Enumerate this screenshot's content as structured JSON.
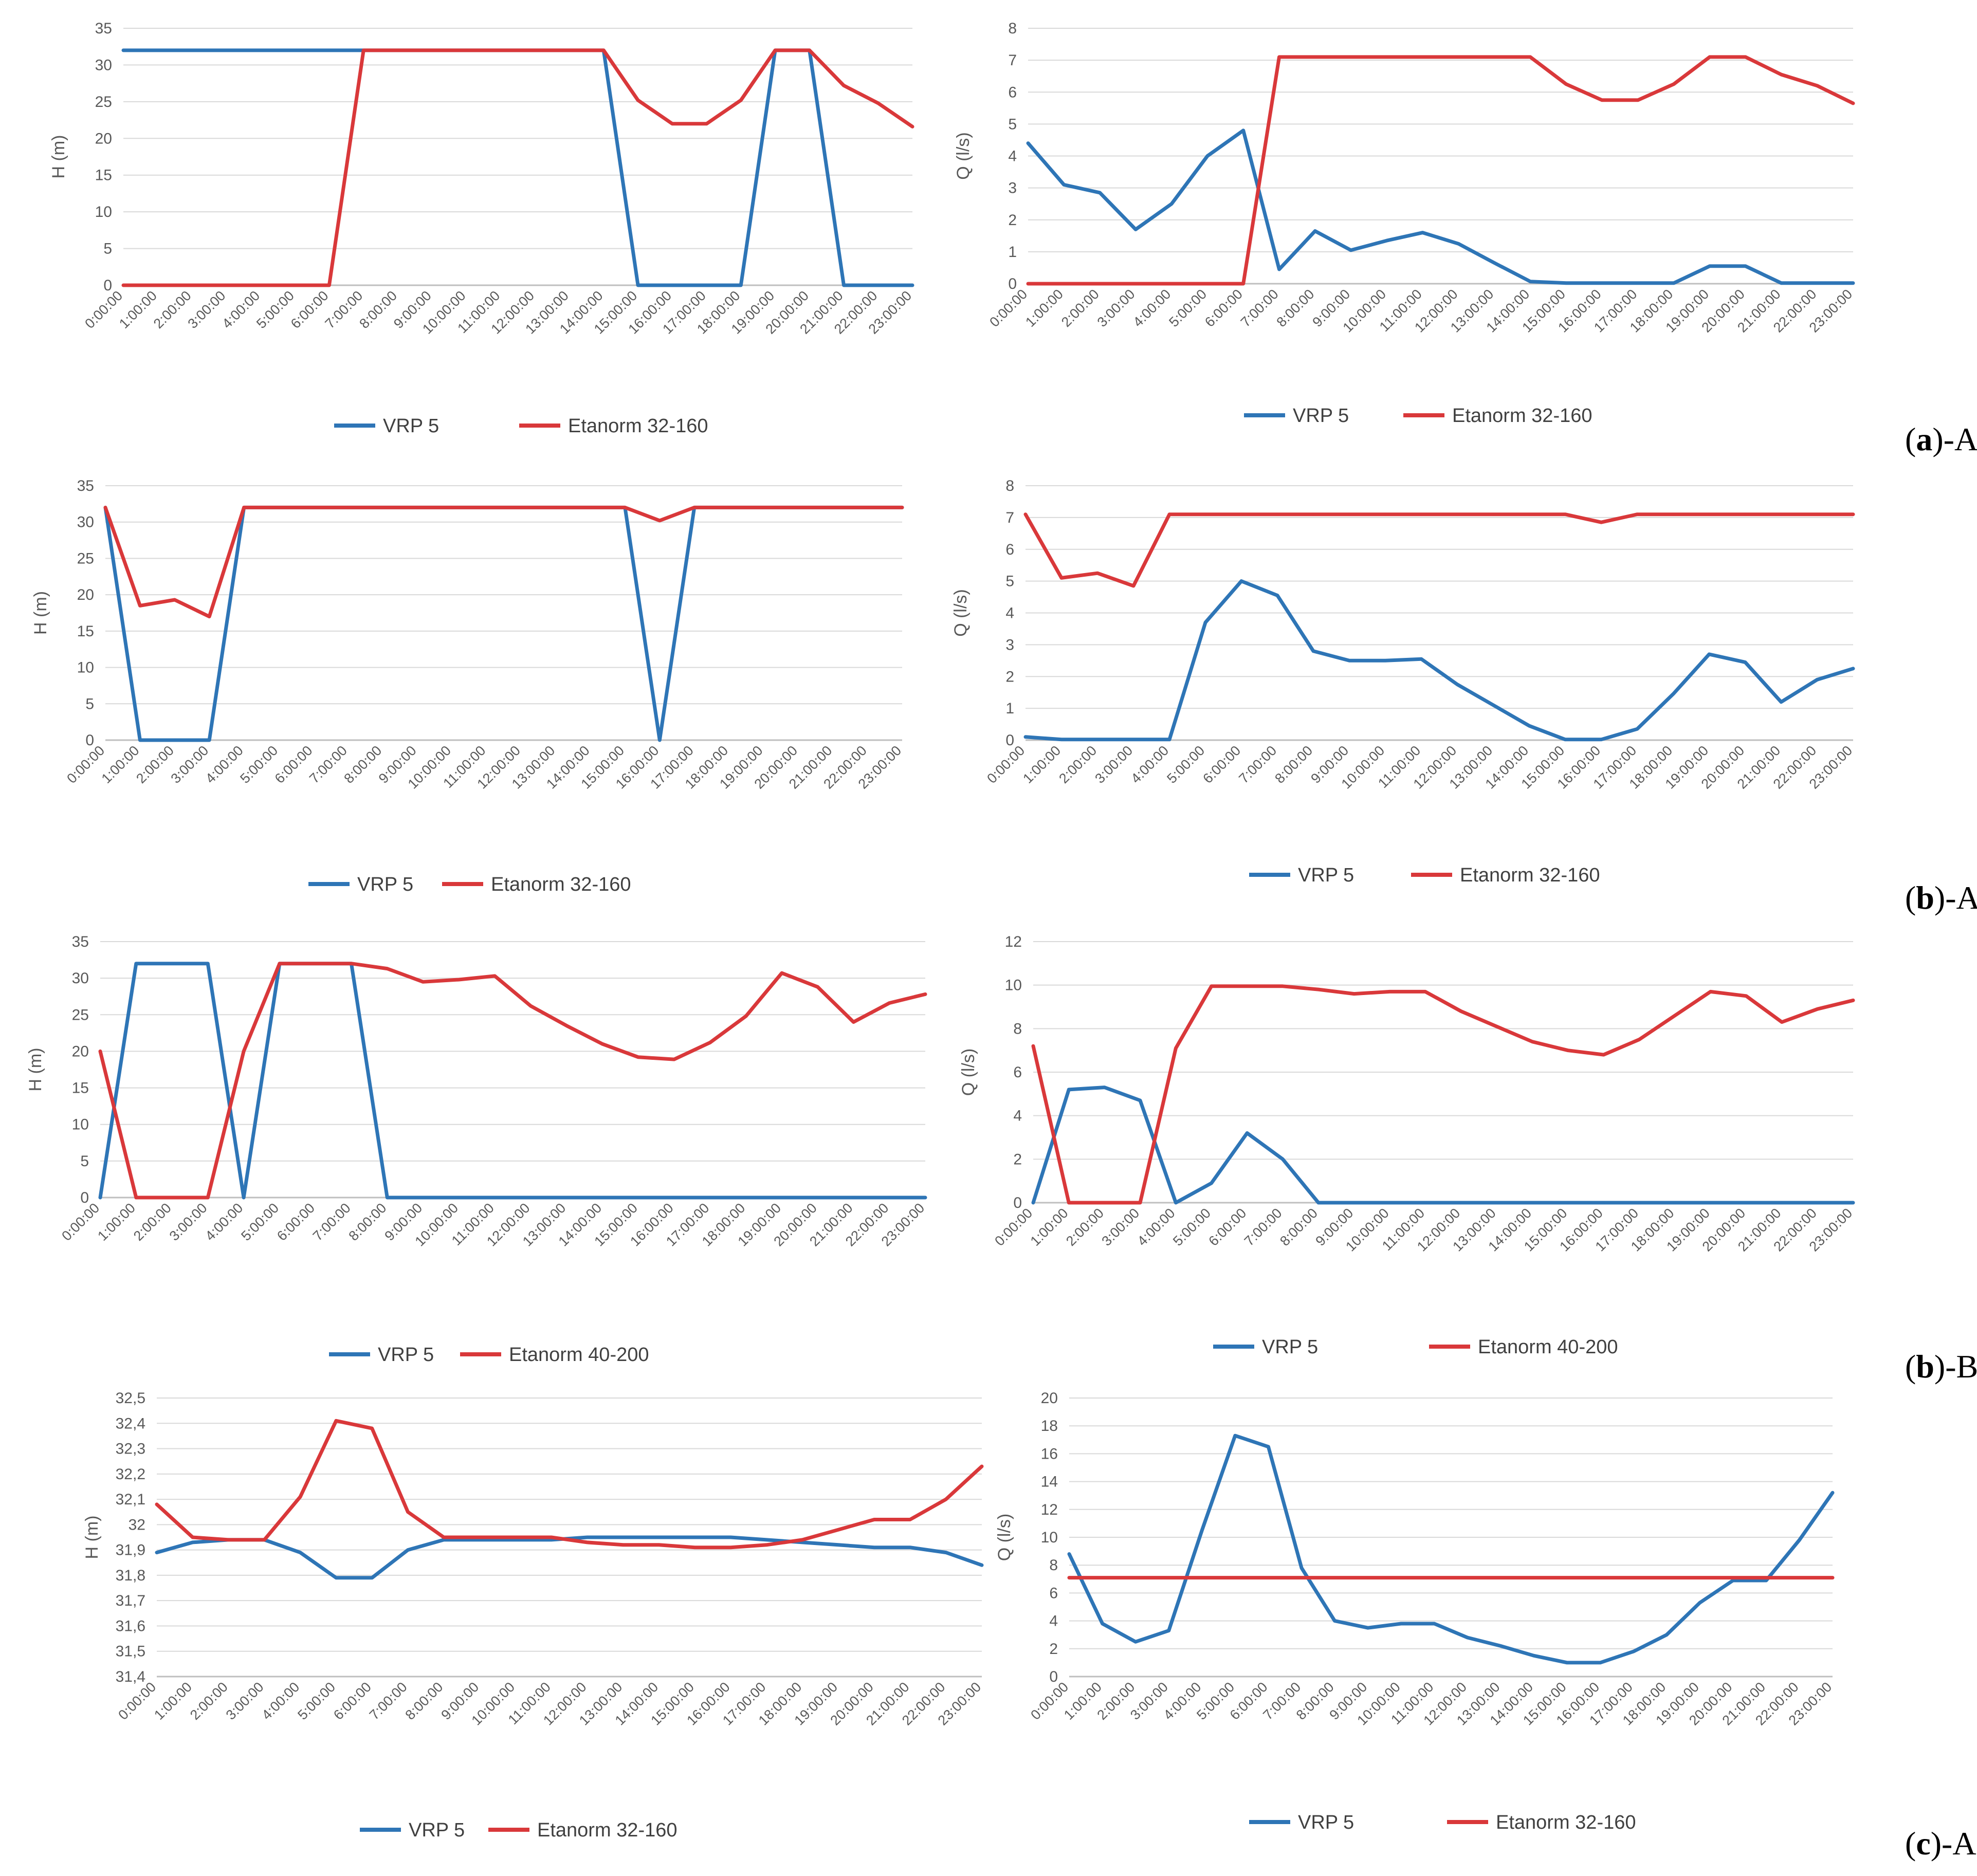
{
  "colors": {
    "vrp": "#2E75B6",
    "pump": "#D9383A",
    "grid": "#D9D9D9",
    "axis": "#BFBFBF"
  },
  "panel_labels": [
    {
      "paren_open": "(",
      "letter": "a",
      "paren_close": ")",
      "suffix": "-A"
    },
    {
      "paren_open": "(",
      "letter": "b",
      "paren_close": ")",
      "suffix": "-A"
    },
    {
      "paren_open": "(",
      "letter": "b",
      "paren_close": ")",
      "suffix": "-B"
    },
    {
      "paren_open": "(",
      "letter": "c",
      "paren_close": ")",
      "suffix": "-A"
    }
  ],
  "chart_data": [
    {
      "id": "a-A-H",
      "type": "line",
      "ylabel": "H (m)",
      "ylim": [
        0,
        35
      ],
      "yticks": [
        0,
        5,
        10,
        15,
        20,
        25,
        30,
        35
      ],
      "categories": [
        "0:00:00",
        "1:00:00",
        "2:00:00",
        "3:00:00",
        "4:00:00",
        "5:00:00",
        "6:00:00",
        "7:00:00",
        "8:00:00",
        "9:00:00",
        "10:00:00",
        "11:00:00",
        "12:00:00",
        "13:00:00",
        "14:00:00",
        "15:00:00",
        "16:00:00",
        "17:00:00",
        "18:00:00",
        "19:00:00",
        "20:00:00",
        "21:00:00",
        "22:00:00",
        "23:00:00"
      ],
      "series": [
        {
          "name": "VRP 5",
          "values": [
            32,
            32,
            32,
            32,
            32,
            32,
            32,
            32,
            32,
            32,
            32,
            32,
            32,
            32,
            32,
            0,
            0,
            0,
            0,
            32,
            32,
            0,
            0,
            0
          ]
        },
        {
          "name": "Etanorm 32-160",
          "values": [
            0,
            0,
            0,
            0,
            0,
            0,
            0,
            32,
            32,
            32,
            32,
            32,
            32,
            32,
            32,
            25.2,
            22,
            22,
            25.2,
            32,
            32,
            27.2,
            24.8,
            21.6
          ]
        }
      ]
    },
    {
      "id": "a-A-Q",
      "type": "line",
      "ylabel": "Q (l/s)",
      "ylim": [
        0,
        8
      ],
      "yticks": [
        0,
        1,
        2,
        3,
        4,
        5,
        6,
        7,
        8
      ],
      "categories": [
        "0:00:00",
        "1:00:00",
        "2:00:00",
        "3:00:00",
        "4:00:00",
        "5:00:00",
        "6:00:00",
        "7:00:00",
        "8:00:00",
        "9:00:00",
        "10:00:00",
        "11:00:00",
        "12:00:00",
        "13:00:00",
        "14:00:00",
        "15:00:00",
        "16:00:00",
        "17:00:00",
        "18:00:00",
        "19:00:00",
        "20:00:00",
        "21:00:00",
        "22:00:00",
        "23:00:00"
      ],
      "series": [
        {
          "name": "VRP 5",
          "values": [
            4.4,
            3.1,
            2.85,
            1.7,
            2.5,
            4.0,
            4.8,
            0.45,
            1.65,
            1.05,
            1.35,
            1.6,
            1.25,
            0.65,
            0.07,
            0.02,
            0.02,
            0.02,
            0.02,
            0.55,
            0.55,
            0.02,
            0.02,
            0.02
          ]
        },
        {
          "name": "Etanorm 32-160",
          "values": [
            0,
            0,
            0,
            0,
            0,
            0,
            0,
            7.1,
            7.1,
            7.1,
            7.1,
            7.1,
            7.1,
            7.1,
            7.1,
            6.25,
            5.75,
            5.75,
            6.25,
            7.1,
            7.1,
            6.55,
            6.2,
            5.65
          ]
        }
      ]
    },
    {
      "id": "b-A-H",
      "type": "line",
      "ylabel": "H (m)",
      "ylim": [
        0,
        35
      ],
      "yticks": [
        0,
        5,
        10,
        15,
        20,
        25,
        30,
        35
      ],
      "categories": [
        "0:00:00",
        "1:00:00",
        "2:00:00",
        "3:00:00",
        "4:00:00",
        "5:00:00",
        "6:00:00",
        "7:00:00",
        "8:00:00",
        "9:00:00",
        "10:00:00",
        "11:00:00",
        "12:00:00",
        "13:00:00",
        "14:00:00",
        "15:00:00",
        "16:00:00",
        "17:00:00",
        "18:00:00",
        "19:00:00",
        "20:00:00",
        "21:00:00",
        "22:00:00",
        "23:00:00"
      ],
      "series": [
        {
          "name": "VRP 5",
          "values": [
            32,
            0,
            0,
            0,
            32,
            32,
            32,
            32,
            32,
            32,
            32,
            32,
            32,
            32,
            32,
            32,
            0,
            32,
            32,
            32,
            32,
            32,
            32,
            32
          ]
        },
        {
          "name": "Etanorm 32-160",
          "values": [
            32,
            18.5,
            19.3,
            17,
            32,
            32,
            32,
            32,
            32,
            32,
            32,
            32,
            32,
            32,
            32,
            32,
            30.2,
            32,
            32,
            32,
            32,
            32,
            32,
            32
          ]
        }
      ]
    },
    {
      "id": "b-A-Q",
      "type": "line",
      "ylabel": "Q (l/s)",
      "ylim": [
        0,
        8
      ],
      "yticks": [
        0,
        1,
        2,
        3,
        4,
        5,
        6,
        7,
        8
      ],
      "categories": [
        "0:00:00",
        "1:00:00",
        "2:00:00",
        "3:00:00",
        "4:00:00",
        "5:00:00",
        "6:00:00",
        "7:00:00",
        "8:00:00",
        "9:00:00",
        "10:00:00",
        "11:00:00",
        "12:00:00",
        "13:00:00",
        "14:00:00",
        "15:00:00",
        "16:00:00",
        "17:00:00",
        "18:00:00",
        "19:00:00",
        "20:00:00",
        "21:00:00",
        "22:00:00",
        "23:00:00"
      ],
      "series": [
        {
          "name": "VRP 5",
          "values": [
            0.1,
            0.02,
            0.02,
            0.02,
            0.02,
            3.7,
            5.0,
            4.55,
            2.8,
            2.5,
            2.5,
            2.55,
            1.75,
            1.1,
            0.45,
            0.02,
            0.02,
            0.35,
            1.45,
            2.7,
            2.45,
            1.2,
            1.9,
            2.25
          ]
        },
        {
          "name": "Etanorm 32-160",
          "values": [
            7.1,
            5.1,
            5.25,
            4.85,
            7.1,
            7.1,
            7.1,
            7.1,
            7.1,
            7.1,
            7.1,
            7.1,
            7.1,
            7.1,
            7.1,
            7.1,
            6.85,
            7.1,
            7.1,
            7.1,
            7.1,
            7.1,
            7.1,
            7.1
          ]
        }
      ]
    },
    {
      "id": "b-B-H",
      "type": "line",
      "ylabel": "H (m)",
      "ylim": [
        0,
        35
      ],
      "yticks": [
        0,
        5,
        10,
        15,
        20,
        25,
        30,
        35
      ],
      "categories": [
        "0:00:00",
        "1:00:00",
        "2:00:00",
        "3:00:00",
        "4:00:00",
        "5:00:00",
        "6:00:00",
        "7:00:00",
        "8:00:00",
        "9:00:00",
        "10:00:00",
        "11:00:00",
        "12:00:00",
        "13:00:00",
        "14:00:00",
        "15:00:00",
        "16:00:00",
        "17:00:00",
        "18:00:00",
        "19:00:00",
        "20:00:00",
        "21:00:00",
        "22:00:00",
        "23:00:00"
      ],
      "series": [
        {
          "name": "VRP 5",
          "values": [
            0,
            32,
            32,
            32,
            0,
            32,
            32,
            32,
            0,
            0,
            0,
            0,
            0,
            0,
            0,
            0,
            0,
            0,
            0,
            0,
            0,
            0,
            0,
            0
          ]
        },
        {
          "name": "Etanorm 40-200",
          "values": [
            20,
            0,
            0,
            0,
            20,
            32,
            32,
            32,
            31.3,
            29.5,
            29.8,
            30.3,
            26.2,
            23.5,
            21,
            19.2,
            18.9,
            21.2,
            24.8,
            30.7,
            28.8,
            24,
            26.6,
            27.8
          ]
        }
      ]
    },
    {
      "id": "b-B-Q",
      "type": "line",
      "ylabel": "Q (l/s)",
      "ylim": [
        0,
        12
      ],
      "yticks": [
        0,
        2,
        4,
        6,
        8,
        10,
        12
      ],
      "categories": [
        "0:00:00",
        "1:00:00",
        "2:00:00",
        "3:00:00",
        "4:00:00",
        "5:00:00",
        "6:00:00",
        "7:00:00",
        "8:00:00",
        "9:00:00",
        "10:00:00",
        "11:00:00",
        "12:00:00",
        "13:00:00",
        "14:00:00",
        "15:00:00",
        "16:00:00",
        "17:00:00",
        "18:00:00",
        "19:00:00",
        "20:00:00",
        "21:00:00",
        "22:00:00",
        "23:00:00"
      ],
      "series": [
        {
          "name": "VRP 5",
          "values": [
            0,
            5.2,
            5.3,
            4.7,
            0,
            0.9,
            3.2,
            2.0,
            0,
            0,
            0,
            0,
            0,
            0,
            0,
            0,
            0,
            0,
            0,
            0,
            0,
            0,
            0,
            0
          ]
        },
        {
          "name": "Etanorm 40-200",
          "values": [
            7.2,
            0,
            0,
            0,
            7.1,
            9.95,
            9.95,
            9.95,
            9.8,
            9.6,
            9.7,
            9.7,
            8.8,
            8.1,
            7.4,
            7.0,
            6.8,
            7.5,
            8.6,
            9.7,
            9.5,
            8.3,
            8.9,
            9.3
          ]
        }
      ]
    },
    {
      "id": "c-A-H",
      "type": "line",
      "ylabel": "H (m)",
      "ylim": [
        31.4,
        32.5
      ],
      "yticks": [
        "31,4",
        "31,5",
        "31,6",
        "31,7",
        "31,8",
        "31,9",
        "32",
        "32,1",
        "32,2",
        "32,3",
        "32,4",
        "32,5"
      ],
      "categories": [
        "0:00:00",
        "1:00:00",
        "2:00:00",
        "3:00:00",
        "4:00:00",
        "5:00:00",
        "6:00:00",
        "7:00:00",
        "8:00:00",
        "9:00:00",
        "10:00:00",
        "11:00:00",
        "12:00:00",
        "13:00:00",
        "14:00:00",
        "15:00:00",
        "16:00:00",
        "17:00:00",
        "18:00:00",
        "19:00:00",
        "20:00:00",
        "21:00:00",
        "22:00:00",
        "23:00:00"
      ],
      "series": [
        {
          "name": "VRP 5",
          "values": [
            31.89,
            31.93,
            31.94,
            31.94,
            31.89,
            31.79,
            31.79,
            31.9,
            31.94,
            31.94,
            31.94,
            31.94,
            31.95,
            31.95,
            31.95,
            31.95,
            31.95,
            31.94,
            31.93,
            31.92,
            31.91,
            31.91,
            31.89,
            31.84
          ]
        },
        {
          "name": "Etanorm 32-160",
          "values": [
            32.08,
            31.95,
            31.94,
            31.94,
            32.11,
            32.41,
            32.38,
            32.05,
            31.95,
            31.95,
            31.95,
            31.95,
            31.93,
            31.92,
            31.92,
            31.91,
            31.91,
            31.92,
            31.94,
            31.98,
            32.02,
            32.02,
            32.1,
            32.23
          ]
        }
      ]
    },
    {
      "id": "c-A-Q",
      "type": "line",
      "ylabel": "Q (l/s)",
      "ylim": [
        0,
        20
      ],
      "yticks": [
        0,
        2,
        4,
        6,
        8,
        10,
        12,
        14,
        16,
        18,
        20
      ],
      "categories": [
        "0:00:00",
        "1:00:00",
        "2:00:00",
        "3:00:00",
        "4:00:00",
        "5:00:00",
        "6:00:00",
        "7:00:00",
        "8:00:00",
        "9:00:00",
        "10:00:00",
        "11:00:00",
        "12:00:00",
        "13:00:00",
        "14:00:00",
        "15:00:00",
        "16:00:00",
        "17:00:00",
        "18:00:00",
        "19:00:00",
        "20:00:00",
        "21:00:00",
        "22:00:00",
        "23:00:00"
      ],
      "series": [
        {
          "name": "VRP 5",
          "values": [
            8.8,
            3.8,
            2.5,
            3.3,
            10.5,
            17.3,
            16.5,
            7.8,
            4.0,
            3.5,
            3.8,
            3.8,
            2.8,
            2.2,
            1.5,
            1.0,
            1.0,
            1.8,
            3.0,
            5.3,
            6.9,
            6.9,
            9.8,
            13.2
          ]
        },
        {
          "name": "Etanorm 32-160",
          "values": [
            7.1,
            7.1,
            7.1,
            7.1,
            7.1,
            7.1,
            7.1,
            7.1,
            7.1,
            7.1,
            7.1,
            7.1,
            7.1,
            7.1,
            7.1,
            7.1,
            7.1,
            7.1,
            7.1,
            7.1,
            7.1,
            7.1,
            7.1,
            7.1
          ]
        }
      ]
    }
  ]
}
